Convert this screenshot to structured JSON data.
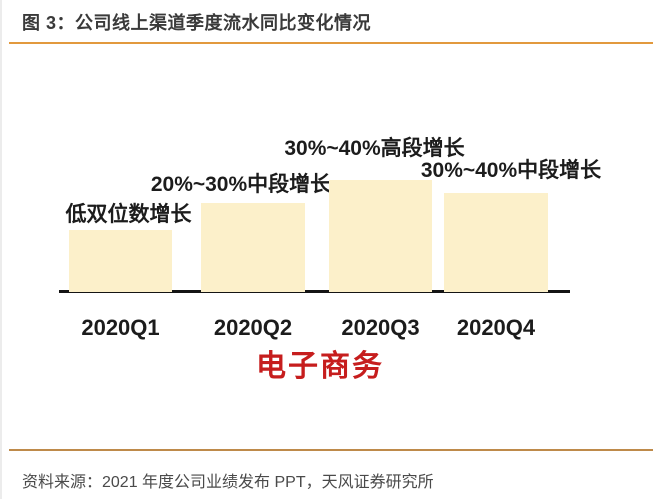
{
  "header": {
    "title": "图 3：公司线上渠道季度流水同比变化情况"
  },
  "chart_data": {
    "type": "bar",
    "title": "公司线上渠道季度流水同比变化情况",
    "categories": [
      "2020Q1",
      "2020Q2",
      "2020Q3",
      "2020Q4"
    ],
    "annotations": [
      "低双位数增长",
      "20%~30%中段增长",
      "30%~40%高段增长",
      "30%~40%中段增长"
    ],
    "relative_heights": [
      0.554,
      0.795,
      1.0,
      0.884
    ],
    "series_label": "电子商务",
    "xlabel": "",
    "ylabel": "",
    "value_axis_shown": false,
    "gridlines": false,
    "legend": "none",
    "bar_color": "#fcf0ca"
  },
  "footer": {
    "source": "资料来源：2021 年度公司业绩发布 PPT，天风证券研究所"
  },
  "colors": {
    "rule_top": "#e2993d",
    "rule_bottom": "#be8a4a",
    "bar_fill": "#fcf0ca",
    "axis_line": "#141414",
    "series_label": "#c61d1d",
    "title_text": "#3a3a3a",
    "source_text": "#4a4a4a"
  }
}
